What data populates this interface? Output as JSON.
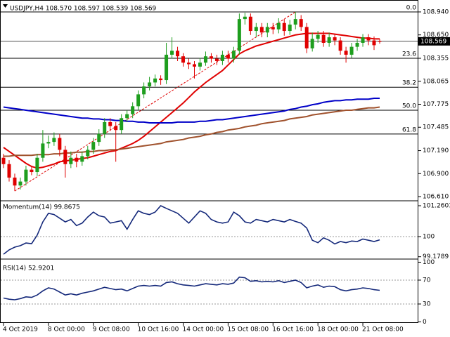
{
  "chart_data": [
    {
      "type": "candlestick",
      "title": "USDJPY,H4  108.570 108.597 108.539 108.569",
      "categories": [
        "4 Oct 2019",
        null,
        null,
        null,
        null,
        null,
        null,
        null,
        "8 Oct 00:00",
        null,
        null,
        null,
        null,
        null,
        null,
        null,
        "9 Oct 08:00",
        null,
        null,
        null,
        null,
        null,
        null,
        null,
        "10 Oct 16:00",
        null,
        null,
        null,
        null,
        null,
        null,
        null,
        "14 Oct 00:00",
        null,
        null,
        null,
        null,
        null,
        null,
        null,
        "15 Oct 08:00",
        null,
        null,
        null,
        null,
        null,
        null,
        null,
        "16 Oct 16:00",
        null,
        null,
        null,
        null,
        null,
        null,
        null,
        "18 Oct 00:00",
        null,
        null,
        null,
        null,
        null,
        null,
        null,
        "21 Oct 08:00",
        null,
        null,
        null
      ],
      "open": [
        107.1,
        107.02,
        106.85,
        106.75,
        106.8,
        106.95,
        106.92,
        107.1,
        107.28,
        107.3,
        107.35,
        107.2,
        107.02,
        107.1,
        107.05,
        107.12,
        107.2,
        107.3,
        107.4,
        107.55,
        107.5,
        107.45,
        107.6,
        107.65,
        107.75,
        107.9,
        108.0,
        108.05,
        108.1,
        108.08,
        108.4,
        108.45,
        108.38,
        108.3,
        108.28,
        108.25,
        108.3,
        108.38,
        108.35,
        108.32,
        108.4,
        108.35,
        108.45,
        108.85,
        108.88,
        108.7,
        108.75,
        108.68,
        108.75,
        108.72,
        108.8,
        108.7,
        108.78,
        108.85,
        108.75,
        108.48,
        108.6,
        108.65,
        108.55,
        108.62,
        108.58,
        108.45,
        108.4,
        108.5,
        108.55,
        108.62,
        108.58,
        108.57
      ],
      "high": [
        107.15,
        107.07,
        106.9,
        106.85,
        107.0,
        107.0,
        107.15,
        107.45,
        107.38,
        107.42,
        107.4,
        107.25,
        107.18,
        107.15,
        107.18,
        107.25,
        107.35,
        107.46,
        107.6,
        107.6,
        107.55,
        107.65,
        107.7,
        107.8,
        107.95,
        108.05,
        108.12,
        108.15,
        108.14,
        108.55,
        108.62,
        108.5,
        108.42,
        108.35,
        108.32,
        108.36,
        108.44,
        108.42,
        108.4,
        108.45,
        108.45,
        108.5,
        108.92,
        108.93,
        108.92,
        108.8,
        108.8,
        108.8,
        108.8,
        108.86,
        108.85,
        108.84,
        108.94,
        108.9,
        108.8,
        108.68,
        108.7,
        108.7,
        108.68,
        108.66,
        108.62,
        108.5,
        108.55,
        108.6,
        108.66,
        108.66,
        108.63,
        108.597
      ],
      "low": [
        106.97,
        106.8,
        106.68,
        106.7,
        106.75,
        106.88,
        106.87,
        107.05,
        107.22,
        107.25,
        107.12,
        106.85,
        106.97,
        106.98,
        107.0,
        107.08,
        107.15,
        107.25,
        107.35,
        107.44,
        107.05,
        107.4,
        107.55,
        107.6,
        107.7,
        107.85,
        107.95,
        108.0,
        108.02,
        108.03,
        108.35,
        108.32,
        108.25,
        108.22,
        108.1,
        108.2,
        108.26,
        108.3,
        108.27,
        108.27,
        108.3,
        108.3,
        108.4,
        108.78,
        108.65,
        108.62,
        108.62,
        108.62,
        108.66,
        108.67,
        108.64,
        108.65,
        108.72,
        108.7,
        108.42,
        108.44,
        108.55,
        108.5,
        108.5,
        108.52,
        108.4,
        108.3,
        108.36,
        108.45,
        108.5,
        108.52,
        108.46,
        108.539
      ],
      "close": [
        107.02,
        106.85,
        106.75,
        106.8,
        106.95,
        106.92,
        107.1,
        107.28,
        107.3,
        107.35,
        107.2,
        107.02,
        107.1,
        107.05,
        107.12,
        107.2,
        107.3,
        107.4,
        107.55,
        107.5,
        107.45,
        107.6,
        107.65,
        107.75,
        107.9,
        108.0,
        108.05,
        108.1,
        108.08,
        108.4,
        108.45,
        108.38,
        108.3,
        108.28,
        108.25,
        108.3,
        108.38,
        108.35,
        108.32,
        108.4,
        108.35,
        108.45,
        108.85,
        108.88,
        108.7,
        108.75,
        108.68,
        108.75,
        108.72,
        108.8,
        108.7,
        108.78,
        108.85,
        108.75,
        108.48,
        108.6,
        108.65,
        108.55,
        108.62,
        108.58,
        108.45,
        108.4,
        108.5,
        108.55,
        108.62,
        108.58,
        108.52,
        108.569
      ],
      "up_color": "#1e9e1e",
      "down_color": "#e00000",
      "series": [
        {
          "color": "#e00000",
          "values": [
            107.23,
            107.18,
            107.13,
            107.08,
            107.03,
            106.99,
            106.97,
            106.98,
            107.0,
            107.02,
            107.05,
            107.06,
            107.07,
            107.08,
            107.09,
            107.1,
            107.12,
            107.14,
            107.16,
            107.18,
            107.19,
            107.22,
            107.25,
            107.28,
            107.32,
            107.37,
            107.43,
            107.49,
            107.55,
            107.61,
            107.67,
            107.73,
            107.79,
            107.86,
            107.93,
            107.99,
            108.05,
            108.1,
            108.15,
            108.2,
            108.27,
            108.34,
            108.41,
            108.45,
            108.48,
            108.51,
            108.53,
            108.55,
            108.57,
            108.59,
            108.61,
            108.63,
            108.65,
            108.66,
            108.67,
            108.67,
            108.67,
            108.67,
            108.67,
            108.66,
            108.65,
            108.64,
            108.63,
            108.62,
            108.61,
            108.61,
            108.6,
            108.6
          ]
        },
        {
          "color": "#0000c8",
          "values": [
            107.74,
            107.73,
            107.72,
            107.71,
            107.7,
            107.69,
            107.68,
            107.67,
            107.66,
            107.65,
            107.64,
            107.63,
            107.62,
            107.61,
            107.6,
            107.6,
            107.59,
            107.59,
            107.58,
            107.58,
            107.57,
            107.57,
            107.56,
            107.56,
            107.55,
            107.55,
            107.54,
            107.54,
            107.54,
            107.54,
            107.54,
            107.55,
            107.55,
            107.55,
            107.55,
            107.56,
            107.56,
            107.57,
            107.58,
            107.58,
            107.59,
            107.6,
            107.61,
            107.62,
            107.63,
            107.64,
            107.65,
            107.66,
            107.67,
            107.68,
            107.69,
            107.71,
            107.72,
            107.74,
            107.75,
            107.77,
            107.78,
            107.8,
            107.81,
            107.82,
            107.82,
            107.83,
            107.83,
            107.84,
            107.84,
            107.84,
            107.85,
            107.85
          ]
        },
        {
          "color": "#a0522d",
          "values": [
            107.12,
            107.12,
            107.13,
            107.13,
            107.13,
            107.13,
            107.14,
            107.14,
            107.14,
            107.15,
            107.15,
            107.16,
            107.16,
            107.17,
            107.17,
            107.18,
            107.18,
            107.19,
            107.19,
            107.2,
            107.2,
            107.21,
            107.22,
            107.23,
            107.24,
            107.25,
            107.26,
            107.27,
            107.28,
            107.3,
            107.31,
            107.32,
            107.33,
            107.35,
            107.36,
            107.37,
            107.39,
            107.4,
            107.42,
            107.43,
            107.45,
            107.46,
            107.47,
            107.49,
            107.5,
            107.51,
            107.53,
            107.54,
            107.55,
            107.56,
            107.57,
            107.59,
            107.6,
            107.61,
            107.62,
            107.64,
            107.65,
            107.66,
            107.67,
            107.68,
            107.69,
            107.7,
            107.7,
            107.71,
            107.72,
            107.73,
            107.73,
            107.74
          ]
        }
      ],
      "fib_levels": [
        {
          "value": 108.94,
          "label": "0.0"
        },
        {
          "value": 108.355,
          "label": "23.6"
        },
        {
          "value": 107.99,
          "label": "38.2"
        },
        {
          "value": 107.7,
          "label": "50.0"
        },
        {
          "value": 107.4,
          "label": "61.8"
        }
      ],
      "fib_color": "#e00000",
      "current_price": {
        "value": 108.569,
        "label": "108.569"
      },
      "ylim": [
        106.566,
        109.046
      ],
      "yticks": [
        {
          "value": 108.94,
          "label": "108.940"
        },
        {
          "value": 108.65,
          "label": "108.650"
        },
        {
          "value": 108.355,
          "label": "108.355"
        },
        {
          "value": 108.065,
          "label": "108.065"
        },
        {
          "value": 107.775,
          "label": "107.775"
        },
        {
          "value": 107.485,
          "label": "107.485"
        },
        {
          "value": 107.19,
          "label": "107.190"
        },
        {
          "value": 106.9,
          "label": "106.900"
        },
        {
          "value": 106.61,
          "label": "106.610"
        }
      ]
    },
    {
      "type": "line",
      "title": "Momentum(14) 99.8675",
      "color": "#14287a",
      "values": [
        99.28,
        99.46,
        99.57,
        99.63,
        99.74,
        99.71,
        100.06,
        100.6,
        100.95,
        100.9,
        100.75,
        100.6,
        100.7,
        100.45,
        100.55,
        100.8,
        101.0,
        100.85,
        100.8,
        100.55,
        100.6,
        100.65,
        100.3,
        100.7,
        101.05,
        100.95,
        100.9,
        101.0,
        101.26,
        101.15,
        101.05,
        100.95,
        100.75,
        100.55,
        100.8,
        101.05,
        100.95,
        100.7,
        100.6,
        100.55,
        100.6,
        101.0,
        100.85,
        100.6,
        100.55,
        100.7,
        100.65,
        100.6,
        100.7,
        100.65,
        100.6,
        100.7,
        100.62,
        100.55,
        100.35,
        99.85,
        99.75,
        99.95,
        99.85,
        99.7,
        99.8,
        99.75,
        99.82,
        99.8,
        99.9,
        99.85,
        99.8,
        99.8675
      ],
      "levels": [
        100
      ],
      "ylim": [
        99.141,
        101.432
      ],
      "yticks": [
        101.2603,
        100,
        99.1789
      ]
    },
    {
      "type": "line",
      "title": "RSI(14) 52.9201",
      "color": "#14287a",
      "values": [
        40,
        38,
        37,
        39,
        42,
        41,
        45,
        52,
        57,
        55,
        50,
        45,
        47,
        45,
        48,
        50,
        52,
        55,
        58,
        56,
        54,
        55,
        52,
        56,
        60,
        61,
        60,
        61,
        60,
        66,
        67,
        64,
        62,
        61,
        60,
        62,
        64,
        63,
        62,
        64,
        63,
        65,
        75,
        74,
        68,
        69,
        67,
        68,
        67,
        69,
        66,
        68,
        70,
        66,
        57,
        60,
        62,
        58,
        60,
        59,
        54,
        52,
        54,
        55,
        57,
        56,
        54,
        52.9201
      ],
      "levels": [
        70,
        30
      ],
      "ylim": [
        -0.6,
        102.9
      ],
      "yticks": [
        100,
        70,
        30,
        0
      ]
    }
  ]
}
